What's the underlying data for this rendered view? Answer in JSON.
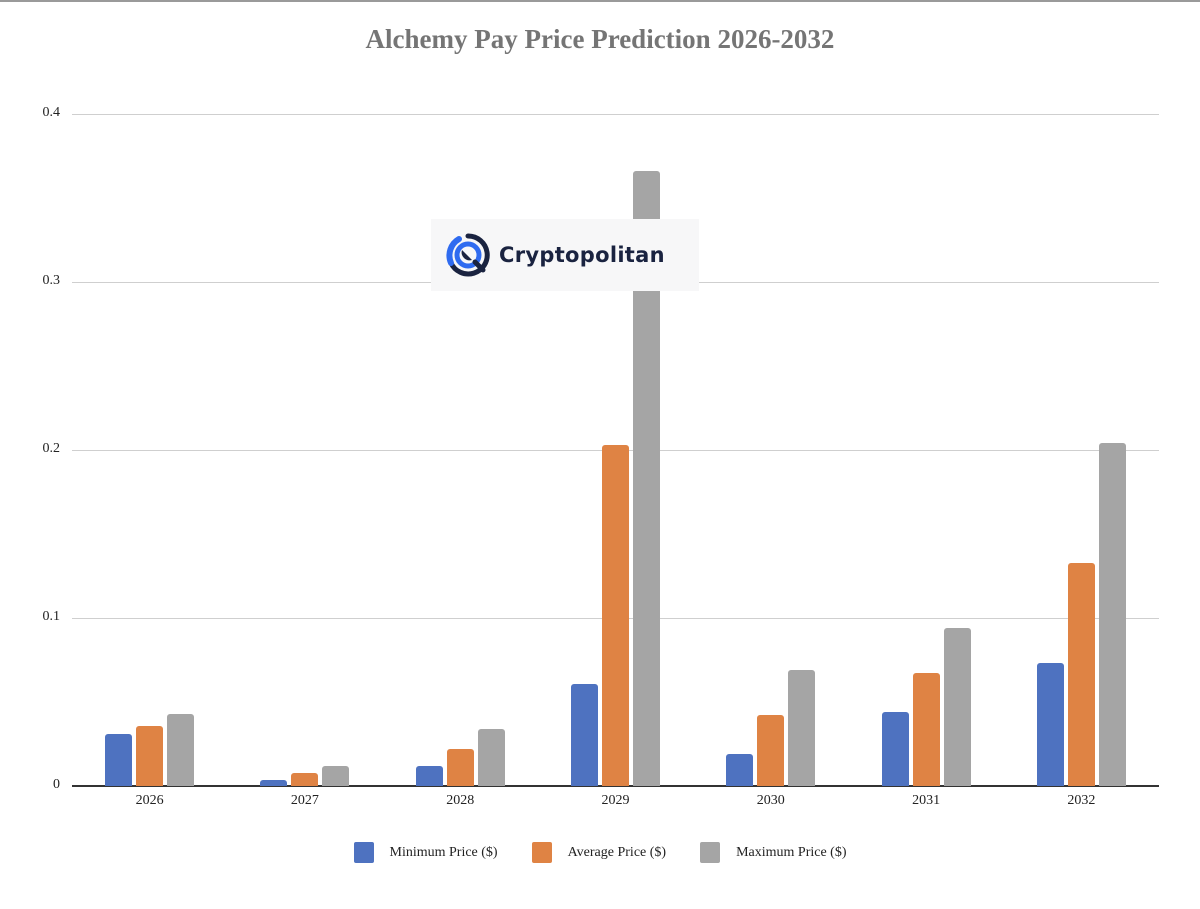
{
  "chart_data": {
    "type": "bar",
    "title": "Alchemy Pay Price Prediction 2026-2032",
    "xlabel": "",
    "ylabel": "",
    "categories": [
      "2026",
      "2027",
      "2028",
      "2029",
      "2030",
      "2031",
      "2032"
    ],
    "series": [
      {
        "name": "Minimum Price ($)",
        "color": "#4e72c0",
        "values": [
          0.031,
          0.0035,
          0.012,
          0.061,
          0.019,
          0.044,
          0.073
        ]
      },
      {
        "name": "Average Price ($)",
        "color": "#df8344",
        "values": [
          0.036,
          0.008,
          0.022,
          0.203,
          0.042,
          0.067,
          0.133
        ]
      },
      {
        "name": "Maximum Price ($)",
        "color": "#a5a5a5",
        "values": [
          0.043,
          0.012,
          0.034,
          0.366,
          0.069,
          0.094,
          0.204
        ]
      }
    ],
    "ylim": [
      0,
      0.4
    ],
    "yticks": [
      "0",
      "0.1",
      "0.2",
      "0.3",
      "0.4"
    ],
    "grid": true,
    "legend_position": "bottom"
  },
  "watermark": {
    "text": "Cryptopolitan",
    "icon": "cryptopolitan-logo-icon"
  }
}
